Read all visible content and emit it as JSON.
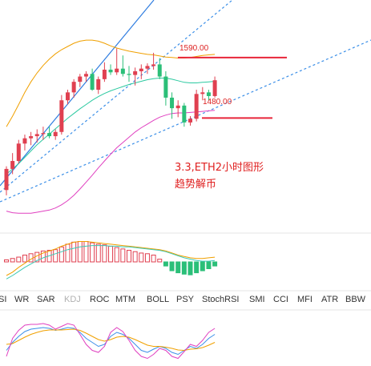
{
  "annotations": {
    "price_high": "1590.00",
    "price_low": "1480.00",
    "note_line1": "3.3,ETH2小时图形",
    "note_line2": "趋势解币"
  },
  "indicator_tabs": [
    "SI",
    "WR",
    "SAR",
    "KDJ",
    "ROC",
    "MTM",
    "BOLL",
    "PSY",
    "StochRSI",
    "SMI",
    "CCI",
    "MFI",
    "ATR",
    "BBW"
  ],
  "active_tab": "KDJ",
  "colors": {
    "up": "#e04050",
    "down": "#2bbf78",
    "boll_upper": "#f0a000",
    "boll_mid": "#2bc9a0",
    "boll_lower": "#e040c0",
    "trend_solid": "#2f7de0",
    "trend_dotted": "#3b8fe8",
    "level_line": "#e8263a",
    "macd_fast": "#f0a000",
    "macd_slow": "#3cc8b4",
    "k_line": "#3b8fe8",
    "d_line": "#f0a000",
    "j_line": "#e040c0"
  },
  "chart_data": {
    "type": "candlestick",
    "title": "",
    "levels": [
      1590,
      1480
    ],
    "candles": [
      {
        "o": 1330,
        "h": 1375,
        "l": 1320,
        "c": 1370
      },
      {
        "o": 1370,
        "h": 1400,
        "l": 1360,
        "c": 1385
      },
      {
        "o": 1385,
        "h": 1425,
        "l": 1380,
        "c": 1418
      },
      {
        "o": 1418,
        "h": 1435,
        "l": 1405,
        "c": 1428
      },
      {
        "o": 1428,
        "h": 1440,
        "l": 1415,
        "c": 1432
      },
      {
        "o": 1432,
        "h": 1445,
        "l": 1420,
        "c": 1436
      },
      {
        "o": 1436,
        "h": 1450,
        "l": 1425,
        "c": 1438
      },
      {
        "o": 1438,
        "h": 1450,
        "l": 1428,
        "c": 1432
      },
      {
        "o": 1432,
        "h": 1445,
        "l": 1425,
        "c": 1440
      },
      {
        "o": 1440,
        "h": 1510,
        "l": 1435,
        "c": 1500
      },
      {
        "o": 1500,
        "h": 1520,
        "l": 1492,
        "c": 1515
      },
      {
        "o": 1515,
        "h": 1540,
        "l": 1505,
        "c": 1535
      },
      {
        "o": 1535,
        "h": 1550,
        "l": 1525,
        "c": 1545
      },
      {
        "o": 1545,
        "h": 1555,
        "l": 1535,
        "c": 1550
      },
      {
        "o": 1550,
        "h": 1560,
        "l": 1518,
        "c": 1520
      },
      {
        "o": 1520,
        "h": 1545,
        "l": 1512,
        "c": 1540
      },
      {
        "o": 1540,
        "h": 1572,
        "l": 1535,
        "c": 1558
      },
      {
        "o": 1558,
        "h": 1568,
        "l": 1548,
        "c": 1553
      },
      {
        "o": 1553,
        "h": 1598,
        "l": 1548,
        "c": 1560
      },
      {
        "o": 1560,
        "h": 1585,
        "l": 1545,
        "c": 1550
      },
      {
        "o": 1550,
        "h": 1565,
        "l": 1535,
        "c": 1548
      },
      {
        "o": 1548,
        "h": 1562,
        "l": 1528,
        "c": 1555
      },
      {
        "o": 1555,
        "h": 1568,
        "l": 1540,
        "c": 1560
      },
      {
        "o": 1560,
        "h": 1570,
        "l": 1550,
        "c": 1565
      },
      {
        "o": 1565,
        "h": 1590,
        "l": 1558,
        "c": 1568
      },
      {
        "o": 1568,
        "h": 1580,
        "l": 1540,
        "c": 1545
      },
      {
        "o": 1545,
        "h": 1555,
        "l": 1490,
        "c": 1505
      },
      {
        "o": 1505,
        "h": 1515,
        "l": 1465,
        "c": 1485
      },
      {
        "o": 1485,
        "h": 1500,
        "l": 1468,
        "c": 1490
      },
      {
        "o": 1490,
        "h": 1495,
        "l": 1450,
        "c": 1458
      },
      {
        "o": 1458,
        "h": 1470,
        "l": 1452,
        "c": 1465
      },
      {
        "o": 1465,
        "h": 1520,
        "l": 1460,
        "c": 1512
      },
      {
        "o": 1512,
        "h": 1525,
        "l": 1500,
        "c": 1515
      },
      {
        "o": 1515,
        "h": 1520,
        "l": 1500,
        "c": 1508
      },
      {
        "o": 1508,
        "h": 1545,
        "l": 1505,
        "c": 1538
      }
    ],
    "boll_upper": [
      1450,
      1470,
      1492,
      1515,
      1535,
      1552,
      1566,
      1578,
      1588,
      1596,
      1602,
      1608,
      1612,
      1614,
      1614,
      1612,
      1608,
      1603,
      1599,
      1596,
      1593,
      1591,
      1589,
      1587,
      1586,
      1584,
      1582,
      1581,
      1580,
      1580,
      1581,
      1583,
      1585,
      1586,
      1587
    ],
    "boll_mid": [
      1360,
      1370,
      1380,
      1392,
      1404,
      1416,
      1426,
      1436,
      1446,
      1456,
      1466,
      1475,
      1484,
      1492,
      1500,
      1507,
      1513,
      1518,
      1522,
      1526,
      1530,
      1533,
      1536,
      1539,
      1541,
      1542,
      1542,
      1540,
      1537,
      1534,
      1533,
      1533,
      1534,
      1535,
      1536
    ],
    "boll_lower": [
      1290,
      1287,
      1286,
      1286,
      1286,
      1288,
      1290,
      1292,
      1296,
      1302,
      1310,
      1320,
      1332,
      1345,
      1358,
      1372,
      1385,
      1398,
      1410,
      1420,
      1430,
      1440,
      1448,
      1455,
      1462,
      1468,
      1472,
      1475,
      1476,
      1476,
      1477,
      1478,
      1479,
      1480,
      1481
    ],
    "macd_hist": [
      0.3,
      0.5,
      0.7,
      1.0,
      1.2,
      1.4,
      1.6,
      1.7,
      1.8,
      2.2,
      2.6,
      2.9,
      3.0,
      3.0,
      2.8,
      2.6,
      2.5,
      2.3,
      2.1,
      1.9,
      1.7,
      1.5,
      1.3,
      1.2,
      1.0,
      0.4,
      -0.6,
      -1.3,
      -1.6,
      -1.8,
      -1.9,
      -1.6,
      -1.3,
      -1.0,
      -0.6
    ],
    "macd_fast": [
      -2.0,
      -1.5,
      -0.8,
      -0.2,
      0.4,
      0.9,
      1.3,
      1.6,
      1.9,
      2.3,
      2.6,
      2.9,
      3.0,
      3.0,
      2.9,
      2.8,
      2.7,
      2.6,
      2.5,
      2.4,
      2.3,
      2.2,
      2.1,
      2.0,
      1.9,
      1.8,
      1.6,
      1.3,
      1.0,
      0.8,
      0.6,
      0.5,
      0.5,
      0.6,
      0.7
    ],
    "macd_slow": [
      -2.5,
      -2.0,
      -1.4,
      -0.8,
      -0.3,
      0.2,
      0.6,
      0.9,
      1.2,
      1.5,
      1.8,
      2.0,
      2.2,
      2.3,
      2.4,
      2.4,
      2.4,
      2.3,
      2.3,
      2.2,
      2.2,
      2.1,
      2.0,
      1.9,
      1.8,
      1.7,
      1.5,
      1.2,
      0.9,
      0.6,
      0.4,
      0.2,
      0.1,
      0.1,
      0.2
    ],
    "kdj_k": [
      25,
      45,
      60,
      72,
      78,
      80,
      82,
      80,
      75,
      78,
      82,
      80,
      70,
      55,
      45,
      35,
      40,
      60,
      70,
      65,
      55,
      40,
      25,
      20,
      28,
      35,
      30,
      20,
      15,
      25,
      35,
      30,
      40,
      55,
      65
    ],
    "kdj_d": [
      40,
      42,
      50,
      58,
      65,
      70,
      74,
      76,
      76,
      76,
      77,
      78,
      75,
      68,
      60,
      52,
      48,
      52,
      58,
      60,
      58,
      52,
      45,
      38,
      35,
      35,
      33,
      30,
      26,
      25,
      28,
      29,
      32,
      38,
      45
    ],
    "kdj_j": [
      10,
      55,
      75,
      88,
      90,
      90,
      92,
      88,
      78,
      85,
      92,
      88,
      65,
      40,
      25,
      20,
      35,
      70,
      82,
      72,
      50,
      25,
      10,
      5,
      15,
      30,
      25,
      10,
      5,
      22,
      40,
      35,
      50,
      70,
      80
    ]
  }
}
